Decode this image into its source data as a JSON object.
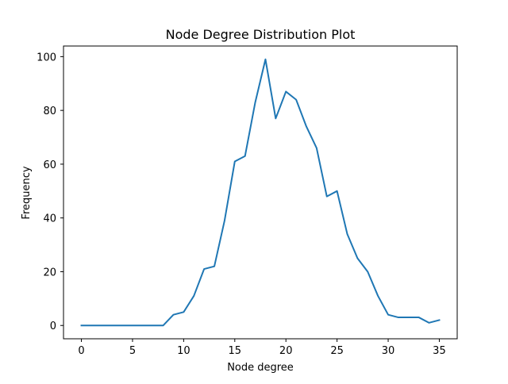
{
  "chart_data": {
    "type": "line",
    "title": "Node Degree Distribution Plot",
    "xlabel": "Node degree",
    "ylabel": "Frequency",
    "xlim": [
      -1.75,
      36.75
    ],
    "ylim": [
      -4.95,
      103.95
    ],
    "xticks": [
      0,
      5,
      10,
      15,
      20,
      25,
      30,
      35
    ],
    "yticks": [
      0,
      20,
      40,
      60,
      80,
      100
    ],
    "grid": false,
    "legend": "none",
    "line_color": "#1f77b4",
    "series": [
      {
        "x": [
          0,
          1,
          2,
          3,
          4,
          5,
          6,
          7,
          8,
          9,
          10,
          11,
          12,
          13,
          14,
          15,
          16,
          17,
          18,
          19,
          20,
          21,
          22,
          23,
          24,
          25,
          26,
          27,
          28,
          29,
          30,
          31,
          32,
          33,
          34,
          35
        ],
        "values": [
          0,
          0,
          0,
          0,
          0,
          0,
          0,
          0,
          0,
          4,
          5,
          11,
          21,
          22,
          39,
          61,
          63,
          83,
          99,
          77,
          87,
          84,
          74,
          66,
          48,
          50,
          34,
          25,
          20,
          11,
          4,
          3,
          3,
          3,
          1,
          2
        ]
      }
    ]
  }
}
